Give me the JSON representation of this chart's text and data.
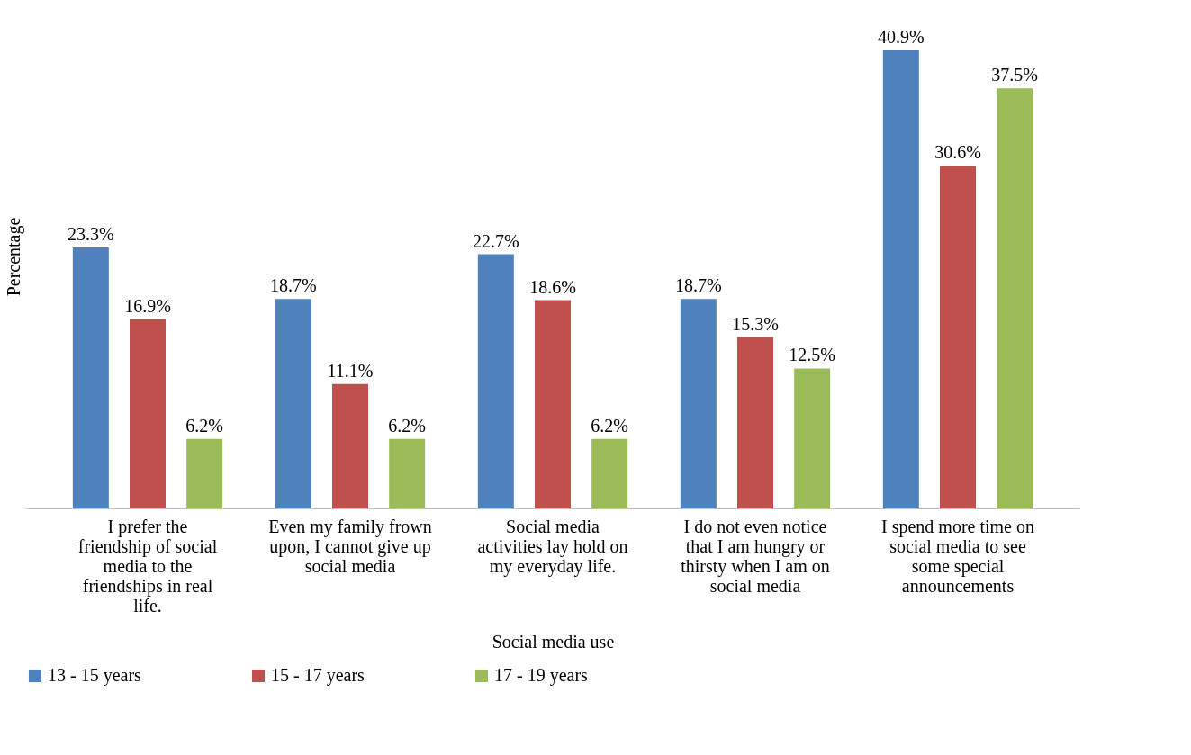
{
  "chart_data": {
    "type": "bar",
    "xlabel": "Social media use",
    "ylabel": "Percentage",
    "legend": "bottom",
    "grid": false,
    "tick_labels": "x",
    "categories": [
      "I prefer the friendship of social media to the friendships in real life.",
      "Even my family frown upon, I cannot give up social media",
      "Social media activities lay hold on my everyday life.",
      "I do not even notice that I am hungry or thirsty when I am on social media",
      "I spend more time on social media to see some special announcements"
    ],
    "series": [
      {
        "name": "13 - 15 years",
        "color": "#4f81bd",
        "values": [
          23.3,
          18.7,
          22.7,
          18.7,
          40.9
        ],
        "value_labels": [
          "23.3%",
          "18.7%",
          "22.7%",
          "18.7%",
          "40.9%"
        ]
      },
      {
        "name": "15 - 17 years",
        "color": "#c0504d",
        "values": [
          16.9,
          11.1,
          18.6,
          15.3,
          30.6
        ],
        "value_labels": [
          "16.9%",
          "11.1%",
          "18.6%",
          "15.3%",
          "30.6%"
        ]
      },
      {
        "name": "17 - 19 years",
        "color": "#9bbb59",
        "values": [
          6.2,
          6.2,
          6.2,
          12.5,
          37.5
        ],
        "value_labels": [
          "6.2%",
          "6.2%",
          "6.2%",
          "12.5%",
          "37.5%"
        ]
      }
    ]
  }
}
